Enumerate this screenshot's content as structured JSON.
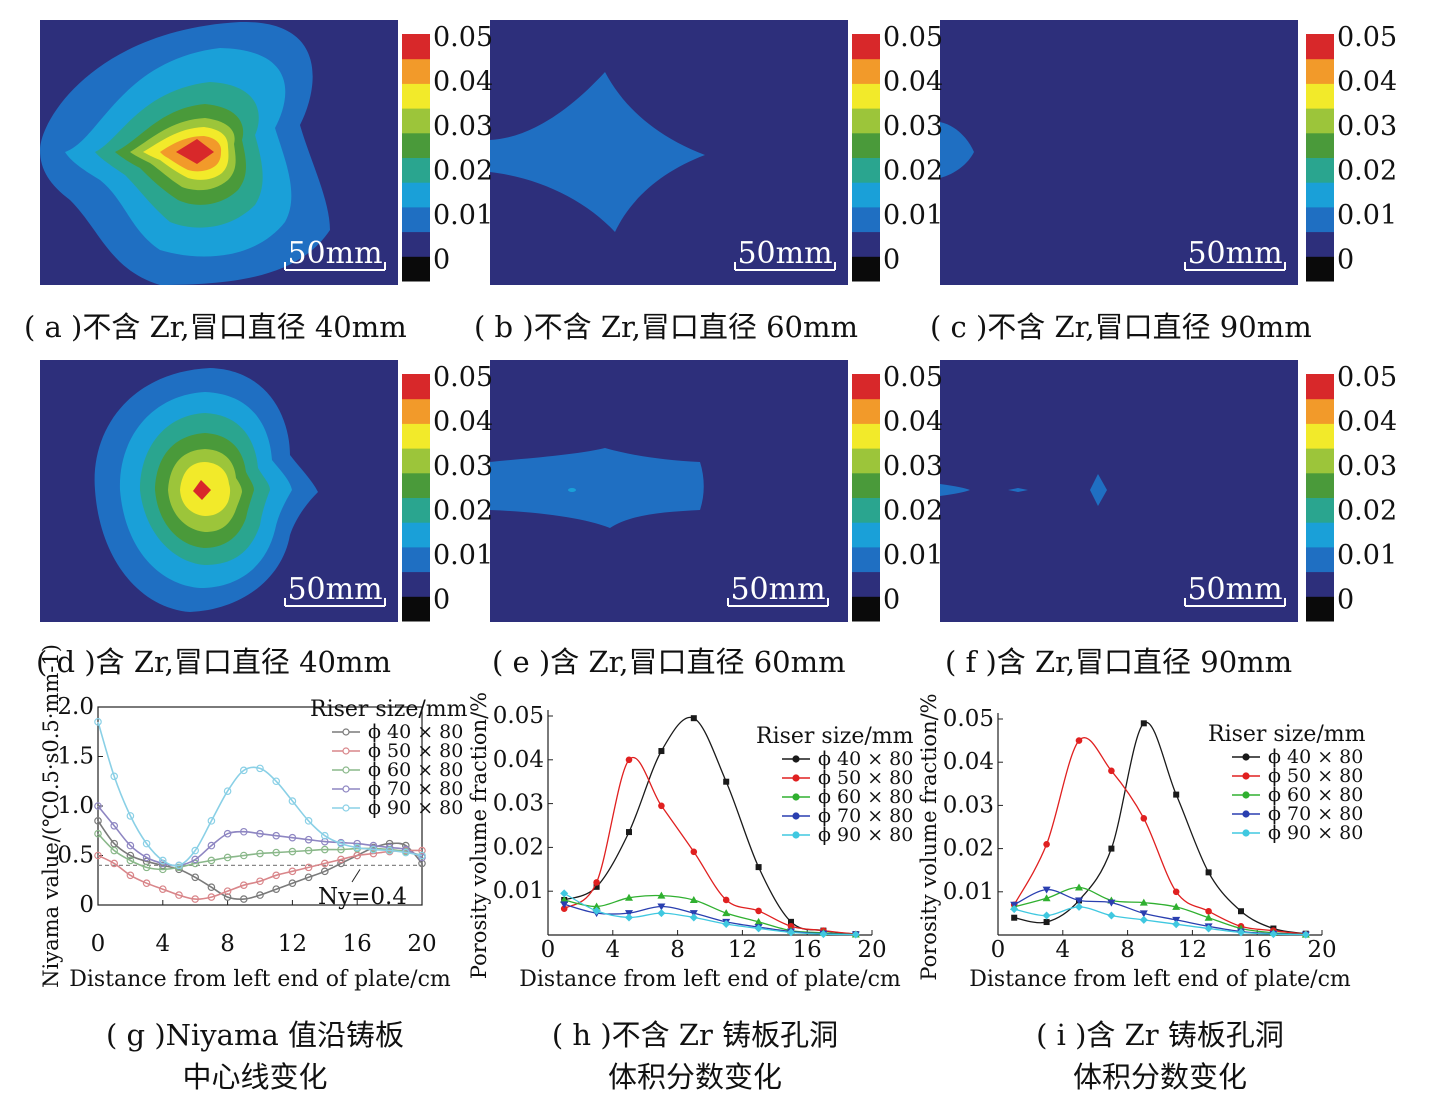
{
  "colors": {
    "background": "#2d2f7b",
    "scale": [
      "#0a0a0a",
      "#2d2f7b",
      "#1f6fc2",
      "#1aa0d8",
      "#2aa58f",
      "#4a9a3a",
      "#9cc53a",
      "#f2ea2a",
      "#f29a2a",
      "#d8282a"
    ]
  },
  "colorbar_labels": [
    "0.05",
    "0.04",
    "0.03",
    "0.02",
    "0.01",
    "0"
  ],
  "scale_bar_label": "50mm",
  "panels": [
    {
      "id": "a",
      "caption": "( a )不含 Zr,冒口直径 40mm",
      "levels": 9
    },
    {
      "id": "b",
      "caption": "( b )不含 Zr,冒口直径 60mm",
      "levels": 2
    },
    {
      "id": "c",
      "caption": "( c )不含 Zr,冒口直径 90mm",
      "levels": 2
    },
    {
      "id": "d",
      "caption": "( d )含 Zr,冒口直径 40mm",
      "levels": 8
    },
    {
      "id": "e",
      "caption": "( e )含 Zr,冒口直径 60mm",
      "levels": 2
    },
    {
      "id": "f",
      "caption": "( f )含 Zr,冒口直径 90mm",
      "levels": 2
    }
  ],
  "chart_data": [
    {
      "id": "g",
      "type": "line",
      "caption_line1": "( g )Niyama 值沿铸板",
      "caption_line2": "中心线变化",
      "xlabel": "Distance from left end of plate/cm",
      "ylabel": "Niyama value/(℃0.5·s0.5·mm-1)",
      "xlim": [
        0,
        20
      ],
      "ylim": [
        0,
        2.0
      ],
      "xticks": [
        0,
        4,
        8,
        12,
        16,
        20
      ],
      "yticks": [
        0,
        0.5,
        1.0,
        1.5,
        2.0
      ],
      "ytick_labels": [
        "0",
        "0.5",
        "1.0",
        "1.5",
        "2.0"
      ],
      "legend_title": "Riser size/mm",
      "annotation": "Ny=0.4",
      "threshold": 0.4,
      "series": [
        {
          "name": "ϕ 40 × 80",
          "color": "#7a7a7a",
          "x": [
            0,
            1,
            2,
            3,
            4,
            5,
            6,
            7,
            8,
            9,
            10,
            11,
            12,
            13,
            14,
            15,
            16,
            17,
            18,
            19,
            20
          ],
          "y": [
            0.85,
            0.62,
            0.5,
            0.44,
            0.4,
            0.36,
            0.28,
            0.18,
            0.08,
            0.06,
            0.1,
            0.16,
            0.22,
            0.28,
            0.34,
            0.42,
            0.5,
            0.58,
            0.62,
            0.6,
            0.42
          ]
        },
        {
          "name": "ϕ 50 × 80",
          "color": "#d9868a",
          "x": [
            0,
            1,
            2,
            3,
            4,
            5,
            6,
            7,
            8,
            9,
            10,
            11,
            12,
            13,
            14,
            15,
            16,
            17,
            18,
            19,
            20
          ],
          "y": [
            0.5,
            0.42,
            0.3,
            0.22,
            0.16,
            0.1,
            0.06,
            0.08,
            0.14,
            0.2,
            0.24,
            0.3,
            0.34,
            0.38,
            0.42,
            0.46,
            0.5,
            0.52,
            0.54,
            0.55,
            0.55
          ]
        },
        {
          "name": "ϕ 60 × 80",
          "color": "#8ab88a",
          "x": [
            0,
            1,
            2,
            3,
            4,
            5,
            6,
            7,
            8,
            9,
            10,
            11,
            12,
            13,
            14,
            15,
            16,
            17,
            18,
            19,
            20
          ],
          "y": [
            0.72,
            0.55,
            0.45,
            0.38,
            0.36,
            0.38,
            0.42,
            0.45,
            0.48,
            0.5,
            0.52,
            0.53,
            0.54,
            0.55,
            0.56,
            0.56,
            0.57,
            0.57,
            0.56,
            0.54,
            0.5
          ]
        },
        {
          "name": "ϕ 70 × 80",
          "color": "#8e86c2",
          "x": [
            0,
            1,
            2,
            3,
            4,
            5,
            6,
            7,
            8,
            9,
            10,
            11,
            12,
            13,
            14,
            15,
            16,
            17,
            18,
            19,
            20
          ],
          "y": [
            1.0,
            0.8,
            0.6,
            0.48,
            0.42,
            0.4,
            0.46,
            0.6,
            0.72,
            0.74,
            0.72,
            0.7,
            0.68,
            0.66,
            0.64,
            0.63,
            0.62,
            0.6,
            0.58,
            0.56,
            0.48
          ]
        },
        {
          "name": "ϕ 90 × 80",
          "color": "#8ad0e6",
          "x": [
            0,
            1,
            2,
            3,
            4,
            5,
            6,
            7,
            8,
            9,
            10,
            11,
            12,
            13,
            14,
            15,
            16,
            17,
            18,
            19,
            20
          ],
          "y": [
            1.85,
            1.3,
            0.9,
            0.62,
            0.45,
            0.4,
            0.55,
            0.85,
            1.15,
            1.36,
            1.38,
            1.25,
            1.05,
            0.85,
            0.7,
            0.62,
            0.58,
            0.56,
            0.55,
            0.53,
            0.5
          ]
        }
      ]
    },
    {
      "id": "h",
      "type": "line",
      "caption_line1": "( h )不含 Zr 铸板孔洞",
      "caption_line2": "体积分数变化",
      "xlabel": "Distance from left end of plate/cm",
      "ylabel": "Porosity volume fraction/%",
      "xlim": [
        0,
        20
      ],
      "ylim": [
        0,
        0.05
      ],
      "xticks": [
        0,
        4,
        8,
        12,
        16,
        20
      ],
      "yticks": [
        0.01,
        0.02,
        0.03,
        0.04,
        0.05
      ],
      "ytick_labels": [
        "0.01",
        "0.02",
        "0.03",
        "0.04",
        "0.05"
      ],
      "legend_title": "Riser size/mm",
      "series": [
        {
          "name": "ϕ 40 × 80",
          "color": "#1a1a1a",
          "x": [
            1,
            3,
            5,
            7,
            9,
            11,
            13,
            15,
            17,
            19
          ],
          "y": [
            0.008,
            0.011,
            0.0235,
            0.042,
            0.0495,
            0.035,
            0.0155,
            0.003,
            0.001,
            0.0002
          ]
        },
        {
          "name": "ϕ 50 × 80",
          "color": "#e02020",
          "x": [
            1,
            3,
            5,
            7,
            9,
            11,
            13,
            15,
            17,
            19
          ],
          "y": [
            0.006,
            0.012,
            0.04,
            0.0295,
            0.019,
            0.008,
            0.0055,
            0.002,
            0.001,
            0.0002
          ]
        },
        {
          "name": "ϕ 60 × 80",
          "color": "#30b030",
          "x": [
            1,
            3,
            5,
            7,
            9,
            11,
            13,
            15,
            17,
            19
          ],
          "y": [
            0.008,
            0.0065,
            0.0085,
            0.009,
            0.008,
            0.005,
            0.003,
            0.001,
            0.0005,
            0.0001
          ]
        },
        {
          "name": "ϕ 70 × 80",
          "color": "#2a3fb0",
          "x": [
            1,
            3,
            5,
            7,
            9,
            11,
            13,
            15,
            17,
            19
          ],
          "y": [
            0.007,
            0.005,
            0.005,
            0.0065,
            0.005,
            0.003,
            0.0018,
            0.0008,
            0.0003,
            0.0001
          ]
        },
        {
          "name": "ϕ 90 × 80",
          "color": "#40c8e0",
          "x": [
            1,
            3,
            5,
            7,
            9,
            11,
            13,
            15,
            17,
            19
          ],
          "y": [
            0.0095,
            0.0055,
            0.004,
            0.005,
            0.004,
            0.0025,
            0.0015,
            0.0006,
            0.0002,
            0.0001
          ]
        }
      ]
    },
    {
      "id": "i",
      "type": "line",
      "caption_line1": "( i )含 Zr 铸板孔洞",
      "caption_line2": "体积分数变化",
      "xlabel": "Distance from left end of plate/cm",
      "ylabel": "Porosity volume fraction/%",
      "xlim": [
        0,
        20
      ],
      "ylim": [
        0,
        0.05
      ],
      "xticks": [
        0,
        4,
        8,
        12,
        16,
        20
      ],
      "yticks": [
        0.01,
        0.02,
        0.03,
        0.04,
        0.05
      ],
      "ytick_labels": [
        "0.01",
        "0.02",
        "0.03",
        "0.04",
        "0.05"
      ],
      "legend_title": "Riser size/mm",
      "series": [
        {
          "name": "ϕ 40 × 80",
          "color": "#1a1a1a",
          "x": [
            1,
            3,
            5,
            7,
            9,
            11,
            13,
            15,
            17,
            19
          ],
          "y": [
            0.004,
            0.003,
            0.008,
            0.02,
            0.049,
            0.0325,
            0.0145,
            0.0055,
            0.0015,
            0.0003
          ]
        },
        {
          "name": "ϕ 50 × 80",
          "color": "#e02020",
          "x": [
            1,
            3,
            5,
            7,
            9,
            11,
            13,
            15,
            17,
            19
          ],
          "y": [
            0.007,
            0.021,
            0.045,
            0.038,
            0.027,
            0.01,
            0.0055,
            0.002,
            0.001,
            0.0002
          ]
        },
        {
          "name": "ϕ 60 × 80",
          "color": "#30b030",
          "x": [
            1,
            3,
            5,
            7,
            9,
            11,
            13,
            15,
            17,
            19
          ],
          "y": [
            0.0065,
            0.0085,
            0.011,
            0.008,
            0.0075,
            0.0065,
            0.004,
            0.0015,
            0.0005,
            0.0001
          ]
        },
        {
          "name": "ϕ 70 × 80",
          "color": "#2a3fb0",
          "x": [
            1,
            3,
            5,
            7,
            9,
            11,
            13,
            15,
            17,
            19
          ],
          "y": [
            0.007,
            0.0105,
            0.008,
            0.0075,
            0.005,
            0.0035,
            0.002,
            0.0008,
            0.0003,
            0.0001
          ]
        },
        {
          "name": "ϕ 90 × 80",
          "color": "#40c8e0",
          "x": [
            1,
            3,
            5,
            7,
            9,
            11,
            13,
            15,
            17,
            19
          ],
          "y": [
            0.006,
            0.0045,
            0.0065,
            0.0045,
            0.0035,
            0.0025,
            0.0015,
            0.0006,
            0.0002,
            0.0001
          ]
        }
      ]
    }
  ]
}
